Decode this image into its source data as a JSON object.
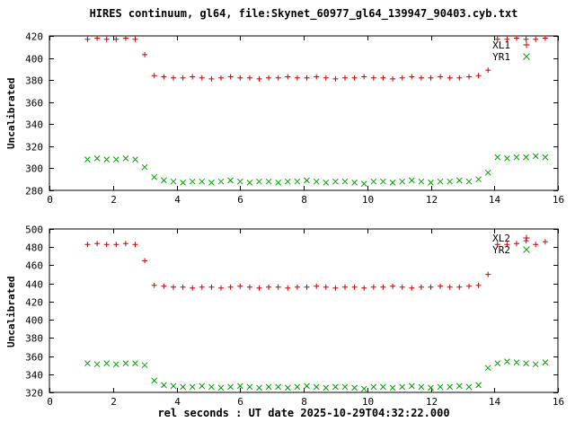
{
  "figure": {
    "title": "HIRES continuum, gl64, file:Skynet_60977_gl64_139947_90403.cyb.txt",
    "background": "#ffffff",
    "text_color": "#000000"
  },
  "chart_data": [
    {
      "type": "scatter",
      "panel": "top",
      "ylabel": "Uncalibrated",
      "ylim": [
        280,
        420
      ],
      "ytick_step": 20,
      "xlim": [
        0,
        16
      ],
      "xtick_step": 2,
      "grid": false,
      "legend_position": "top-right-inside",
      "x": [
        1.2,
        1.5,
        1.8,
        2.1,
        2.4,
        2.7,
        3.0,
        3.3,
        3.6,
        3.9,
        4.2,
        4.5,
        4.8,
        5.1,
        5.4,
        5.7,
        6.0,
        6.3,
        6.6,
        6.9,
        7.2,
        7.5,
        7.8,
        8.1,
        8.4,
        8.7,
        9.0,
        9.3,
        9.6,
        9.9,
        10.2,
        10.5,
        10.8,
        11.1,
        11.4,
        11.7,
        12.0,
        12.3,
        12.6,
        12.9,
        13.2,
        13.5,
        13.8,
        14.1,
        14.4,
        14.7,
        15.0,
        15.3,
        15.6
      ],
      "series": [
        {
          "name": "XL1",
          "color": "#cc0000",
          "marker": "plus",
          "y": [
            417,
            418,
            417,
            417,
            418,
            417,
            403,
            384,
            383,
            382,
            382,
            383,
            382,
            381,
            382,
            383,
            382,
            382,
            381,
            382,
            382,
            383,
            382,
            382,
            383,
            382,
            381,
            382,
            382,
            383,
            382,
            382,
            381,
            382,
            383,
            382,
            382,
            383,
            382,
            382,
            383,
            384,
            389,
            417,
            417,
            418,
            417,
            417,
            418
          ]
        },
        {
          "name": "YR1",
          "color": "#00a000",
          "marker": "cross",
          "y": [
            308,
            309,
            308,
            308,
            309,
            308,
            301,
            292,
            289,
            288,
            287,
            288,
            288,
            287,
            288,
            289,
            288,
            287,
            288,
            288,
            287,
            288,
            288,
            289,
            288,
            287,
            288,
            288,
            287,
            286,
            288,
            288,
            287,
            288,
            289,
            288,
            287,
            288,
            288,
            289,
            288,
            290,
            296,
            310,
            309,
            310,
            310,
            311,
            310
          ]
        }
      ]
    },
    {
      "type": "scatter",
      "panel": "bottom",
      "ylabel": "Uncalibrated",
      "xlabel": "rel seconds : UT date 2025-10-29T04:32:22.000",
      "ylim": [
        320,
        500
      ],
      "ytick_step": 20,
      "xlim": [
        0,
        16
      ],
      "xtick_step": 2,
      "grid": false,
      "legend_position": "top-right-inside",
      "x": [
        1.2,
        1.5,
        1.8,
        2.1,
        2.4,
        2.7,
        3.0,
        3.3,
        3.6,
        3.9,
        4.2,
        4.5,
        4.8,
        5.1,
        5.4,
        5.7,
        6.0,
        6.3,
        6.6,
        6.9,
        7.2,
        7.5,
        7.8,
        8.1,
        8.4,
        8.7,
        9.0,
        9.3,
        9.6,
        9.9,
        10.2,
        10.5,
        10.8,
        11.1,
        11.4,
        11.7,
        12.0,
        12.3,
        12.6,
        12.9,
        13.2,
        13.5,
        13.8,
        14.1,
        14.4,
        14.7,
        15.0,
        15.3,
        15.6
      ],
      "series": [
        {
          "name": "XL2",
          "color": "#cc0000",
          "marker": "plus",
          "y": [
            483,
            484,
            483,
            483,
            484,
            483,
            465,
            438,
            437,
            436,
            436,
            435,
            436,
            436,
            435,
            436,
            437,
            436,
            435,
            436,
            436,
            435,
            436,
            436,
            437,
            436,
            435,
            436,
            436,
            435,
            436,
            436,
            437,
            436,
            435,
            436,
            436,
            437,
            436,
            436,
            437,
            438,
            450,
            483,
            483,
            484,
            487,
            483,
            486
          ]
        },
        {
          "name": "YR2",
          "color": "#00a000",
          "marker": "cross",
          "y": [
            352,
            351,
            352,
            351,
            352,
            352,
            350,
            333,
            328,
            327,
            326,
            326,
            327,
            326,
            325,
            326,
            327,
            326,
            325,
            326,
            326,
            325,
            326,
            327,
            326,
            325,
            326,
            326,
            325,
            324,
            326,
            326,
            325,
            326,
            327,
            326,
            325,
            326,
            326,
            327,
            326,
            328,
            347,
            352,
            354,
            353,
            352,
            351,
            353
          ]
        }
      ]
    }
  ]
}
